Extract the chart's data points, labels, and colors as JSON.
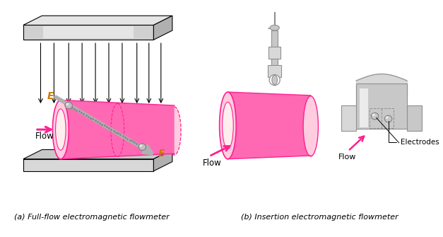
{
  "title_a": "(a) Full-flow electromagnetic flowmeter",
  "title_b": "(b) Insertion electromagnetic flowmeter",
  "label_flow_a": "Flow",
  "label_flow_b": "Flow",
  "label_flow_c": "Flow",
  "label_e1": "E",
  "label_e2": "E",
  "label_electrodes": "Electrodes",
  "pink": "#FF82B8",
  "pink_light": "#FFCCE0",
  "pink_dark": "#FF2090",
  "pink_mid": "#FF69B4",
  "gray1": "#B0B0B0",
  "gray2": "#C8C8C8",
  "gray3": "#D8D8D8",
  "gray4": "#909090",
  "gray5": "#E8E8E8",
  "gray_shiny": "#D0D0D0",
  "black": "#000000",
  "orange": "#CC7700",
  "background": "#FFFFFF",
  "fig_width": 6.27,
  "fig_height": 3.35
}
